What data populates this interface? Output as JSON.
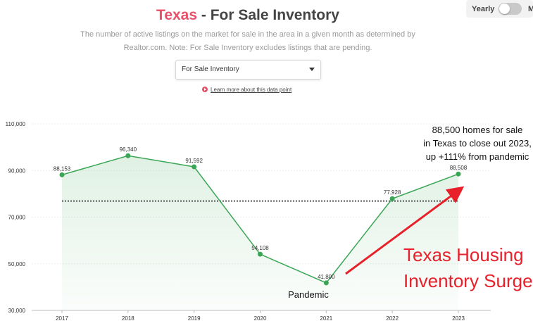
{
  "header": {
    "state": "Texas",
    "title_rest": " - For Sale Inventory",
    "subtitle": "The number of active listings on the market for sale in the area in a given month as determined by Realtor.com. Note: For Sale Inventory excludes listings that are pending."
  },
  "toggle": {
    "label": "Yearly",
    "next_label": "M",
    "on": false
  },
  "select": {
    "value": "For Sale Inventory"
  },
  "learn_link": "Learn more about this data point",
  "colors": {
    "accent": "#e8506a",
    "line": "#3aa655",
    "arrow": "#e8202a"
  },
  "chart_data": {
    "type": "area",
    "x": [
      "2017",
      "2018",
      "2019",
      "2020",
      "2021",
      "2022",
      "2023"
    ],
    "series": [
      {
        "values": [
          88153,
          96340,
          91592,
          54108,
          41800,
          77928,
          88508
        ]
      }
    ],
    "data_labels": [
      "88,153",
      "96,340",
      "91,592",
      "54,108",
      "41,800",
      "77,928",
      "88,508"
    ],
    "yticks": [
      30000,
      50000,
      70000,
      90000,
      110000
    ],
    "ytick_labels": [
      "30,000",
      "50,000",
      "70,000",
      "90,000",
      "110,000"
    ],
    "ylim": [
      30000,
      110000
    ],
    "reference_line": 76900,
    "grid": true,
    "annotations": {
      "pandemic": "Pandemic",
      "note_lines": [
        "88,500 homes for sale",
        "in Texas to close out 2023,",
        "up +111% from pandemic"
      ],
      "headline_lines": [
        "Texas Housing",
        "Inventory Surge"
      ]
    }
  }
}
